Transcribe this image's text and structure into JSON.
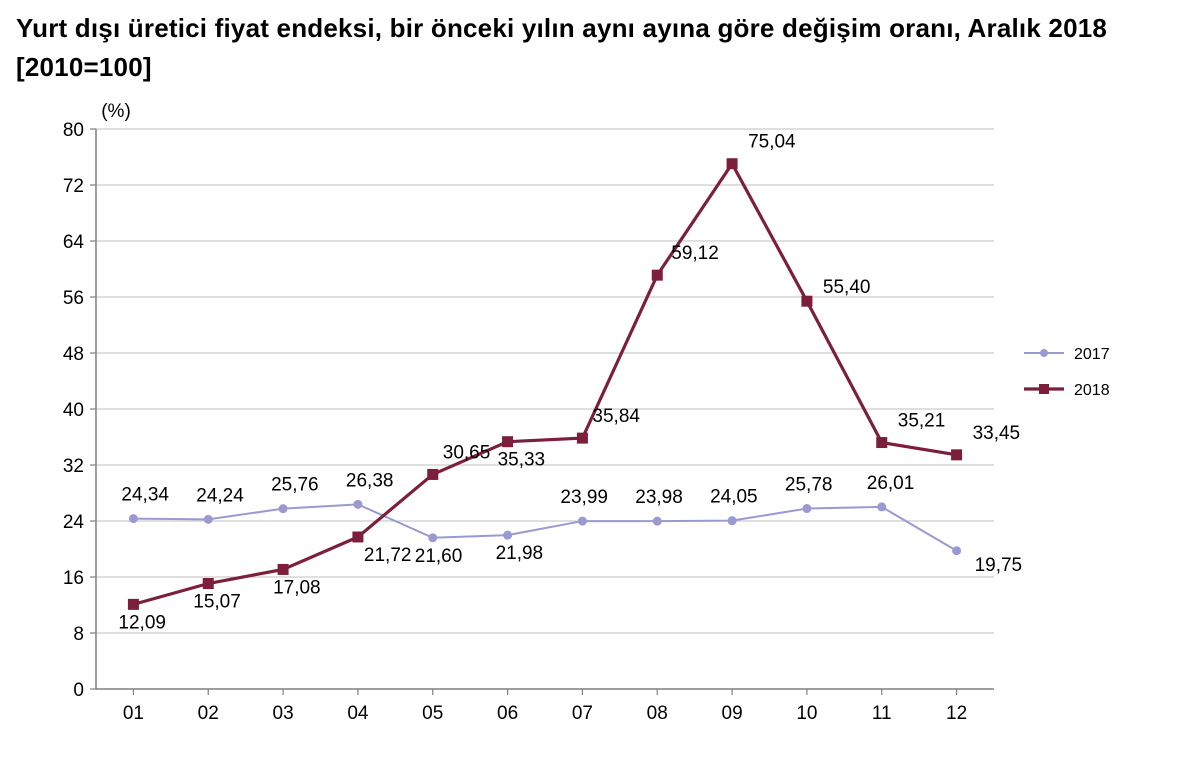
{
  "title_line1": "Yurt dışı üretici fiyat endeksi, bir önceki yılın aynı ayına göre değişim oranı, Aralık 2018",
  "title_line2": "[2010=100]",
  "chart": {
    "type": "line",
    "y_unit_label": "(%)",
    "categories": [
      "01",
      "02",
      "03",
      "04",
      "05",
      "06",
      "07",
      "08",
      "09",
      "10",
      "11",
      "12"
    ],
    "ylim": [
      0,
      80
    ],
    "ytick_step": 8,
    "yticks": [
      0,
      8,
      16,
      24,
      32,
      40,
      48,
      56,
      64,
      72,
      80
    ],
    "grid_color": "#bfbfbf",
    "axis_color": "#7f7f7f",
    "background_color": "#ffffff",
    "tick_label_fontsize": 19,
    "data_label_fontsize": 19,
    "series": [
      {
        "name": "2017",
        "color": "#9a9ad1",
        "marker": "circle",
        "marker_size": 8,
        "line_width": 2,
        "values": [
          24.34,
          24.24,
          25.76,
          26.38,
          21.6,
          21.98,
          23.99,
          23.98,
          24.05,
          25.78,
          26.01,
          19.75
        ],
        "label_offsets": [
          [
            -12,
            -18
          ],
          [
            -12,
            -18
          ],
          [
            -12,
            -18
          ],
          [
            -12,
            -18
          ],
          [
            -18,
            24
          ],
          [
            -12,
            24
          ],
          [
            -22,
            -18
          ],
          [
            -22,
            -18
          ],
          [
            -22,
            -18
          ],
          [
            -22,
            -18
          ],
          [
            -15,
            -18
          ],
          [
            18,
            20
          ]
        ]
      },
      {
        "name": "2018",
        "color": "#7c1f3a",
        "marker": "square",
        "marker_size": 10,
        "line_width": 3.2,
        "values": [
          12.09,
          15.07,
          17.08,
          21.72,
          30.65,
          35.33,
          35.84,
          59.12,
          75.04,
          55.4,
          35.21,
          33.45
        ],
        "label_offsets": [
          [
            -15,
            24
          ],
          [
            -15,
            24
          ],
          [
            -10,
            24
          ],
          [
            6,
            24
          ],
          [
            10,
            -16
          ],
          [
            -10,
            24
          ],
          [
            10,
            -16
          ],
          [
            14,
            -16
          ],
          [
            16,
            -16
          ],
          [
            16,
            -8
          ],
          [
            16,
            -16
          ],
          [
            16,
            -16
          ]
        ]
      }
    ],
    "legend": {
      "position": "right",
      "items": [
        "2017",
        "2018"
      ],
      "fontsize": 16
    }
  }
}
